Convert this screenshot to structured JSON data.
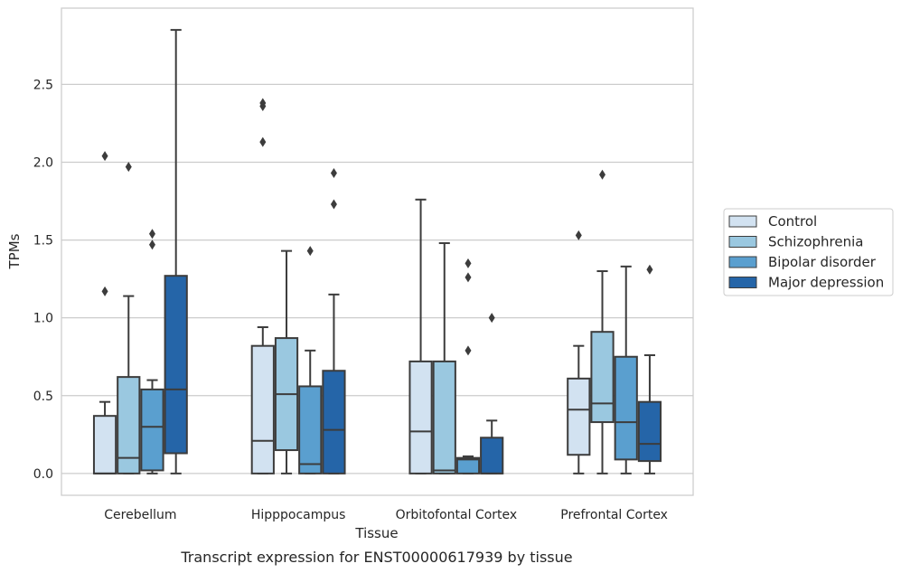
{
  "chart_data": {
    "type": "box",
    "xlabel": "Tissue",
    "ylabel": "TPMs",
    "caption": "Transcript expression for ENST00000617939 by tissue",
    "ylim": [
      -0.14,
      2.99
    ],
    "yticks": [
      "0.0",
      "0.5",
      "1.0",
      "1.5",
      "2.0",
      "2.5"
    ],
    "ytick_values": [
      0,
      0.5,
      1.0,
      1.5,
      2.0,
      2.5
    ],
    "grid": "horizontal",
    "legend_position": "right",
    "categories": [
      "Cerebellum",
      "Hipppocampus",
      "Orbitofontal Cortex",
      "Prefrontal Cortex"
    ],
    "series": [
      {
        "name": "Control",
        "color": "#d2e2f1",
        "boxes": [
          {
            "whislo": 0.0,
            "q1": 0.0,
            "med": 0.0,
            "q3": 0.37,
            "whishi": 0.46,
            "fliers": [
              1.17,
              2.04
            ]
          },
          {
            "whislo": 0.0,
            "q1": 0.0,
            "med": 0.21,
            "q3": 0.82,
            "whishi": 0.94,
            "fliers": [
              2.13,
              2.36,
              2.38
            ]
          },
          {
            "whislo": 0.0,
            "q1": 0.0,
            "med": 0.27,
            "q3": 0.72,
            "whishi": 1.76,
            "fliers": []
          },
          {
            "whislo": 0.0,
            "q1": 0.12,
            "med": 0.41,
            "q3": 0.61,
            "whishi": 0.82,
            "fliers": [
              1.53
            ]
          }
        ]
      },
      {
        "name": "Schizophrenia",
        "color": "#9ac8e0",
        "boxes": [
          {
            "whislo": 0.0,
            "q1": 0.0,
            "med": 0.1,
            "q3": 0.62,
            "whishi": 1.14,
            "fliers": [
              1.97
            ]
          },
          {
            "whislo": 0.0,
            "q1": 0.15,
            "med": 0.51,
            "q3": 0.87,
            "whishi": 1.43,
            "fliers": []
          },
          {
            "whislo": 0.0,
            "q1": 0.0,
            "med": 0.02,
            "q3": 0.72,
            "whishi": 1.48,
            "fliers": []
          },
          {
            "whislo": 0.0,
            "q1": 0.33,
            "med": 0.45,
            "q3": 0.91,
            "whishi": 1.3,
            "fliers": [
              1.92
            ]
          }
        ]
      },
      {
        "name": "Bipolar disorder",
        "color": "#5a9fcf",
        "boxes": [
          {
            "whislo": 0.0,
            "q1": 0.02,
            "med": 0.3,
            "q3": 0.54,
            "whishi": 0.6,
            "fliers": [
              1.47,
              1.54
            ]
          },
          {
            "whislo": 0.0,
            "q1": 0.0,
            "med": 0.06,
            "q3": 0.56,
            "whishi": 0.79,
            "fliers": [
              1.43
            ]
          },
          {
            "whislo": 0.0,
            "q1": 0.0,
            "med": 0.09,
            "q3": 0.1,
            "whishi": 0.11,
            "fliers": [
              0.79,
              1.26,
              1.35
            ]
          },
          {
            "whislo": 0.0,
            "q1": 0.09,
            "med": 0.33,
            "q3": 0.75,
            "whishi": 1.33,
            "fliers": []
          }
        ]
      },
      {
        "name": "Major depression",
        "color": "#2565a8",
        "boxes": [
          {
            "whislo": 0.0,
            "q1": 0.13,
            "med": 0.54,
            "q3": 1.27,
            "whishi": 2.85,
            "fliers": []
          },
          {
            "whislo": 0.0,
            "q1": 0.0,
            "med": 0.28,
            "q3": 0.66,
            "whishi": 1.15,
            "fliers": [
              1.73,
              1.93
            ]
          },
          {
            "whislo": 0.0,
            "q1": 0.0,
            "med": 0.0,
            "q3": 0.23,
            "whishi": 0.34,
            "fliers": [
              1.0
            ]
          },
          {
            "whislo": 0.0,
            "q1": 0.08,
            "med": 0.19,
            "q3": 0.46,
            "whishi": 0.76,
            "fliers": [
              1.31
            ]
          }
        ]
      }
    ]
  }
}
